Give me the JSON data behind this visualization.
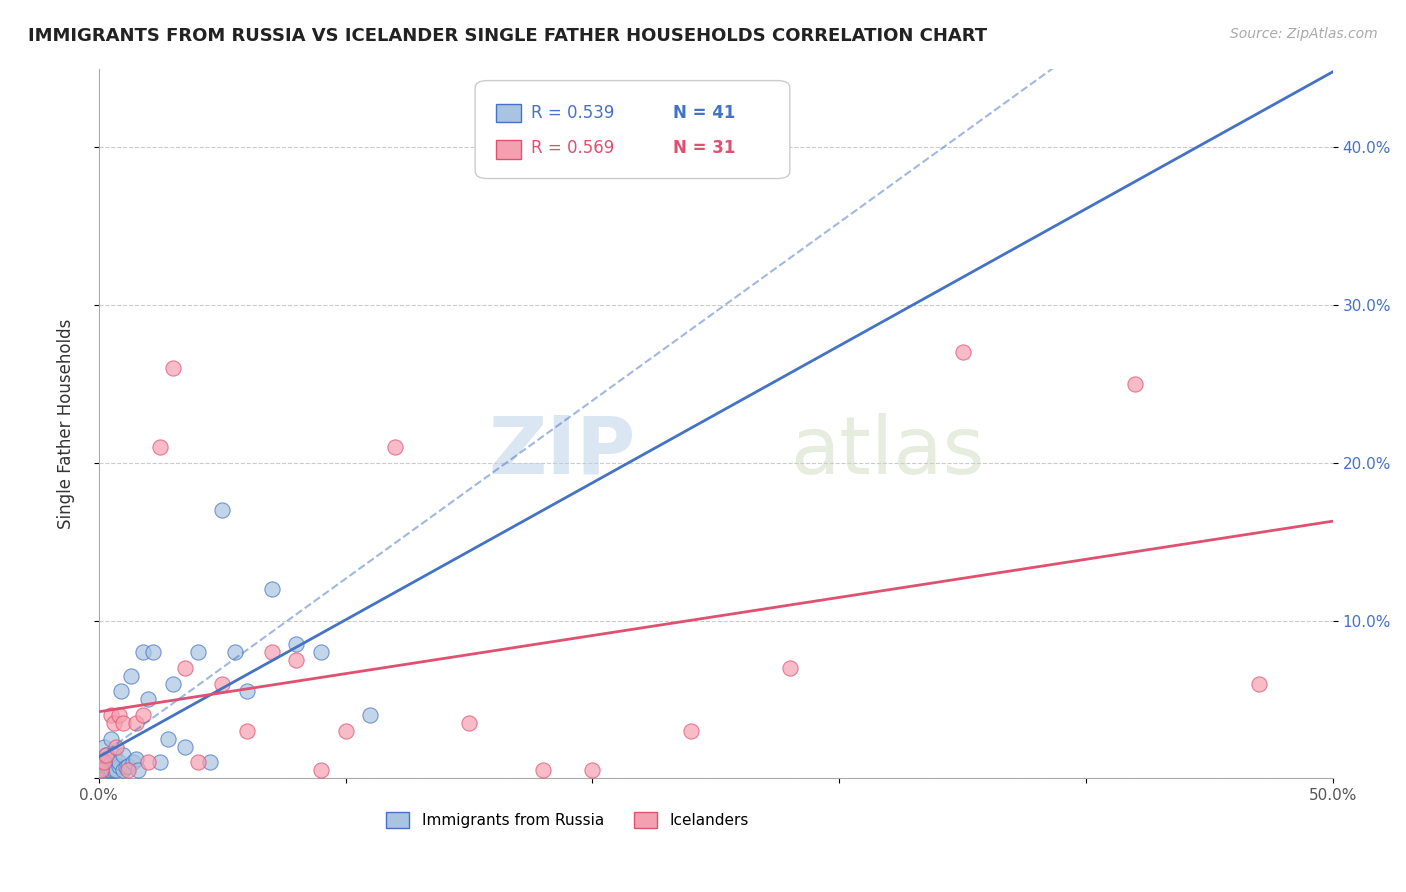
{
  "title": "IMMIGRANTS FROM RUSSIA VS ICELANDER SINGLE FATHER HOUSEHOLDS CORRELATION CHART",
  "source": "Source: ZipAtlas.com",
  "ylabel": "Single Father Households",
  "xlim": [
    0.0,
    0.5
  ],
  "ylim": [
    0.0,
    0.45
  ],
  "legend_r1": "R = 0.539",
  "legend_n1": "N = 41",
  "legend_r2": "R = 0.569",
  "legend_n2": "N = 31",
  "legend_label1": "Immigrants from Russia",
  "legend_label2": "Icelanders",
  "watermark_zip": "ZIP",
  "watermark_atlas": "atlas",
  "background_color": "#ffffff",
  "grid_color": "#cccccc",
  "scatter_color_russia": "#a8c4e0",
  "scatter_color_iceland": "#f4a0b0",
  "line_color_russia": "#4472c4",
  "line_color_iceland": "#e05070",
  "right_axis_color": "#4472c4",
  "russia_points_x": [
    0.001,
    0.002,
    0.002,
    0.003,
    0.003,
    0.003,
    0.004,
    0.004,
    0.005,
    0.005,
    0.005,
    0.006,
    0.006,
    0.007,
    0.008,
    0.008,
    0.009,
    0.01,
    0.01,
    0.011,
    0.012,
    0.013,
    0.014,
    0.015,
    0.016,
    0.018,
    0.02,
    0.022,
    0.025,
    0.028,
    0.03,
    0.035,
    0.04,
    0.045,
    0.05,
    0.055,
    0.06,
    0.07,
    0.08,
    0.09,
    0.11
  ],
  "russia_points_y": [
    0.005,
    0.01,
    0.02,
    0.005,
    0.008,
    0.015,
    0.005,
    0.012,
    0.005,
    0.01,
    0.025,
    0.005,
    0.015,
    0.005,
    0.008,
    0.01,
    0.055,
    0.005,
    0.015,
    0.007,
    0.008,
    0.065,
    0.01,
    0.012,
    0.005,
    0.08,
    0.05,
    0.08,
    0.01,
    0.025,
    0.06,
    0.02,
    0.08,
    0.01,
    0.17,
    0.08,
    0.055,
    0.12,
    0.085,
    0.08,
    0.04
  ],
  "iceland_points_x": [
    0.001,
    0.002,
    0.003,
    0.005,
    0.006,
    0.007,
    0.008,
    0.01,
    0.012,
    0.015,
    0.018,
    0.02,
    0.025,
    0.03,
    0.035,
    0.04,
    0.05,
    0.06,
    0.07,
    0.08,
    0.09,
    0.1,
    0.12,
    0.15,
    0.18,
    0.2,
    0.24,
    0.28,
    0.35,
    0.42,
    0.47
  ],
  "iceland_points_y": [
    0.005,
    0.01,
    0.015,
    0.04,
    0.035,
    0.02,
    0.04,
    0.035,
    0.005,
    0.035,
    0.04,
    0.01,
    0.21,
    0.26,
    0.07,
    0.01,
    0.06,
    0.03,
    0.08,
    0.075,
    0.005,
    0.03,
    0.21,
    0.035,
    0.005,
    0.005,
    0.03,
    0.07,
    0.27,
    0.25,
    0.06
  ]
}
